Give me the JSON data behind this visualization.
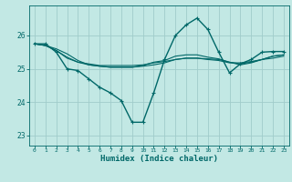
{
  "xlabel": "Humidex (Indice chaleur)",
  "background_color": "#c2e8e4",
  "grid_color": "#a0ccca",
  "line_color": "#006868",
  "xlim": [
    -0.5,
    23.5
  ],
  "ylim": [
    22.7,
    26.9
  ],
  "yticks": [
    23,
    24,
    25,
    26
  ],
  "xticks": [
    0,
    1,
    2,
    3,
    4,
    5,
    6,
    7,
    8,
    9,
    10,
    11,
    12,
    13,
    14,
    15,
    16,
    17,
    18,
    19,
    20,
    21,
    22,
    23
  ],
  "lines": [
    {
      "x": [
        0,
        1,
        2,
        3,
        4,
        5,
        6,
        7,
        8,
        9,
        10,
        11,
        12,
        13,
        14,
        15,
        16,
        17,
        18,
        19,
        20,
        21,
        22,
        23
      ],
      "y": [
        25.75,
        25.75,
        25.5,
        25.0,
        24.95,
        24.7,
        24.45,
        24.28,
        24.05,
        23.4,
        23.4,
        24.28,
        25.28,
        26.0,
        26.32,
        26.52,
        26.18,
        25.5,
        24.88,
        25.15,
        25.28,
        25.5,
        25.52,
        25.52
      ],
      "marker": true,
      "linewidth": 1.0,
      "markersize": 3.0
    },
    {
      "x": [
        0,
        1,
        2,
        3,
        4,
        5,
        6,
        7,
        8,
        9,
        10,
        11,
        12,
        13,
        14,
        15,
        16,
        17,
        18,
        19,
        20,
        21,
        22,
        23
      ],
      "y": [
        25.75,
        25.7,
        25.55,
        25.35,
        25.2,
        25.15,
        25.1,
        25.1,
        25.1,
        25.1,
        25.12,
        25.18,
        25.22,
        25.28,
        25.32,
        25.32,
        25.28,
        25.25,
        25.18,
        25.18,
        25.22,
        25.28,
        25.32,
        25.38
      ],
      "marker": false,
      "linewidth": 0.8
    },
    {
      "x": [
        0,
        1,
        2,
        3,
        4,
        5,
        6,
        7,
        8,
        9,
        10,
        11,
        12,
        13,
        14,
        15,
        16,
        17,
        18,
        19,
        20,
        21,
        22,
        23
      ],
      "y": [
        25.75,
        25.7,
        25.55,
        25.32,
        25.2,
        25.12,
        25.08,
        25.05,
        25.05,
        25.05,
        25.1,
        25.2,
        25.25,
        25.38,
        25.42,
        25.42,
        25.35,
        25.3,
        25.2,
        25.12,
        25.18,
        25.28,
        25.38,
        25.42
      ],
      "marker": false,
      "linewidth": 0.8
    },
    {
      "x": [
        0,
        1,
        2,
        3,
        4,
        5,
        6,
        7,
        8,
        9,
        10,
        11,
        12,
        13,
        14,
        15,
        16,
        17,
        18,
        19,
        20,
        21,
        22,
        23
      ],
      "y": [
        25.75,
        25.7,
        25.6,
        25.45,
        25.25,
        25.12,
        25.08,
        25.05,
        25.05,
        25.05,
        25.08,
        25.12,
        25.18,
        25.28,
        25.32,
        25.32,
        25.3,
        25.28,
        25.2,
        25.15,
        25.2,
        25.28,
        25.38,
        25.42
      ],
      "marker": false,
      "linewidth": 0.8
    }
  ]
}
